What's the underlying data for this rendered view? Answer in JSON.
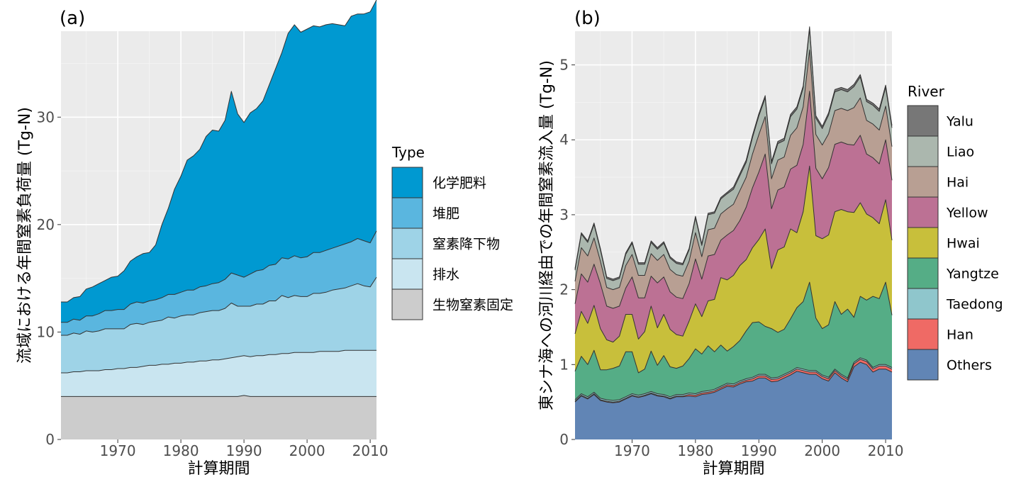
{
  "chart_data": [
    {
      "panel_label": "(a)",
      "type": "area",
      "stacked": true,
      "xlabel": "計算期間",
      "ylabel": "流域における年間窒素負荷量 (Tg-N)",
      "xlim": [
        1961,
        2011
      ],
      "ylim": [
        0,
        38
      ],
      "xticks": [
        1970,
        1980,
        1990,
        2000,
        2010
      ],
      "yticks": [
        0,
        10,
        20,
        30
      ],
      "grid": true,
      "legend": {
        "title": "Type",
        "position": "right"
      },
      "x": [
        1961,
        1962,
        1963,
        1964,
        1965,
        1966,
        1967,
        1968,
        1969,
        1970,
        1971,
        1972,
        1973,
        1974,
        1975,
        1976,
        1977,
        1978,
        1979,
        1980,
        1981,
        1982,
        1983,
        1984,
        1985,
        1986,
        1987,
        1988,
        1989,
        1990,
        1991,
        1992,
        1993,
        1994,
        1995,
        1996,
        1997,
        1998,
        1999,
        2000,
        2001,
        2002,
        2003,
        2004,
        2005,
        2006,
        2007,
        2008,
        2009,
        2010,
        2011
      ],
      "series": [
        {
          "name": "生物窒素固定",
          "color": "#cccccc",
          "values": [
            4.0,
            4.0,
            4.0,
            4.0,
            4.0,
            4.0,
            4.0,
            4.0,
            4.0,
            4.0,
            4.0,
            4.0,
            4.0,
            4.0,
            4.0,
            4.0,
            4.0,
            4.0,
            4.0,
            4.0,
            4.0,
            4.0,
            4.0,
            4.0,
            4.0,
            4.0,
            4.0,
            4.0,
            4.0,
            4.1,
            4.0,
            4.0,
            4.0,
            4.0,
            4.0,
            4.0,
            4.0,
            4.0,
            4.0,
            4.0,
            4.0,
            4.0,
            4.0,
            4.0,
            4.0,
            4.0,
            4.0,
            4.0,
            4.0,
            4.0,
            4.0
          ]
        },
        {
          "name": "排水",
          "color": "#c9e5f0",
          "values": [
            2.2,
            2.2,
            2.3,
            2.3,
            2.4,
            2.4,
            2.4,
            2.5,
            2.5,
            2.6,
            2.6,
            2.7,
            2.7,
            2.8,
            2.9,
            2.9,
            3.0,
            3.0,
            3.1,
            3.1,
            3.2,
            3.2,
            3.3,
            3.3,
            3.4,
            3.4,
            3.5,
            3.6,
            3.7,
            3.7,
            3.7,
            3.8,
            3.8,
            3.9,
            3.9,
            4.0,
            4.0,
            4.1,
            4.1,
            4.1,
            4.1,
            4.2,
            4.2,
            4.2,
            4.2,
            4.3,
            4.3,
            4.3,
            4.3,
            4.3,
            4.3
          ]
        },
        {
          "name": "窒素降下物",
          "color": "#9ed3e7",
          "values": [
            3.5,
            3.5,
            3.6,
            3.5,
            3.7,
            3.6,
            3.7,
            3.8,
            3.8,
            3.7,
            3.7,
            4.0,
            4.1,
            3.9,
            4.0,
            4.1,
            4.1,
            4.4,
            4.2,
            4.4,
            4.4,
            4.4,
            4.5,
            4.6,
            4.6,
            4.6,
            4.7,
            5.1,
            4.7,
            4.6,
            4.7,
            4.8,
            4.8,
            5.0,
            5.0,
            5.4,
            5.2,
            5.3,
            5.2,
            5.2,
            5.5,
            5.4,
            5.5,
            5.7,
            5.8,
            5.8,
            6.0,
            6.2,
            6.0,
            5.9,
            6.8
          ]
        },
        {
          "name": "堆肥",
          "color": "#5ab6df",
          "values": [
            1.2,
            1.2,
            1.3,
            1.3,
            1.4,
            1.5,
            1.6,
            1.7,
            1.7,
            1.8,
            1.8,
            1.9,
            2.0,
            2.0,
            2.0,
            2.0,
            2.1,
            2.1,
            2.2,
            2.2,
            2.3,
            2.3,
            2.4,
            2.4,
            2.5,
            2.6,
            2.7,
            2.8,
            2.9,
            2.7,
            3.0,
            3.1,
            3.2,
            3.3,
            3.4,
            3.5,
            3.6,
            3.7,
            3.6,
            3.7,
            3.8,
            3.8,
            3.9,
            3.9,
            4.0,
            4.1,
            4.1,
            4.2,
            4.2,
            4.1,
            4.3
          ]
        },
        {
          "name": "化学肥料",
          "color": "#0099d1",
          "values": [
            1.9,
            1.9,
            2.0,
            2.2,
            2.5,
            2.7,
            2.8,
            2.8,
            3.1,
            3.1,
            3.6,
            4.0,
            4.2,
            4.6,
            4.5,
            5.1,
            6.8,
            8.0,
            9.8,
            10.8,
            12.1,
            12.5,
            12.8,
            13.9,
            14.3,
            14.1,
            14.8,
            16.9,
            15.0,
            14.4,
            15.0,
            15.1,
            15.7,
            16.8,
            18.2,
            19.1,
            21.0,
            21.5,
            21.0,
            21.2,
            21.1,
            21.0,
            21.0,
            20.9,
            20.6,
            20.3,
            21.0,
            20.9,
            21.1,
            21.5,
            21.5
          ]
        }
      ]
    },
    {
      "panel_label": "(b)",
      "type": "area",
      "stacked": true,
      "xlabel": "計算期間",
      "ylabel": "東シナ海への河川経由での年間窒素流入量 (Tg-N)",
      "xlim": [
        1961,
        2011
      ],
      "ylim": [
        0,
        5.45
      ],
      "xticks": [
        1970,
        1980,
        1990,
        2000,
        2010
      ],
      "yticks": [
        0,
        1,
        2,
        3,
        4,
        5
      ],
      "grid": true,
      "legend": {
        "title": "River",
        "position": "right"
      },
      "x": [
        1961,
        1962,
        1963,
        1964,
        1965,
        1966,
        1967,
        1968,
        1969,
        1970,
        1971,
        1972,
        1973,
        1974,
        1975,
        1976,
        1977,
        1978,
        1979,
        1980,
        1981,
        1982,
        1983,
        1984,
        1985,
        1986,
        1987,
        1988,
        1989,
        1990,
        1991,
        1992,
        1993,
        1994,
        1995,
        1996,
        1997,
        1998,
        1999,
        2000,
        2001,
        2002,
        2003,
        2004,
        2005,
        2006,
        2007,
        2008,
        2009,
        2010,
        2011
      ],
      "series": [
        {
          "name": "Others",
          "color": "#6185b5",
          "values": [
            0.5,
            0.58,
            0.54,
            0.6,
            0.52,
            0.5,
            0.49,
            0.5,
            0.54,
            0.58,
            0.56,
            0.58,
            0.61,
            0.58,
            0.57,
            0.54,
            0.57,
            0.57,
            0.58,
            0.57,
            0.6,
            0.61,
            0.63,
            0.67,
            0.71,
            0.7,
            0.74,
            0.77,
            0.78,
            0.82,
            0.82,
            0.77,
            0.78,
            0.82,
            0.86,
            0.91,
            0.89,
            0.87,
            0.87,
            0.81,
            0.78,
            0.89,
            0.82,
            0.77,
            0.97,
            1.03,
            1.0,
            0.9,
            0.94,
            0.94,
            0.9
          ]
        },
        {
          "name": "Han",
          "color": "#ef6a65",
          "values": [
            0.01,
            0.01,
            0.01,
            0.01,
            0.01,
            0.01,
            0.01,
            0.01,
            0.01,
            0.01,
            0.01,
            0.01,
            0.01,
            0.01,
            0.01,
            0.01,
            0.01,
            0.01,
            0.02,
            0.02,
            0.02,
            0.02,
            0.02,
            0.02,
            0.02,
            0.02,
            0.02,
            0.02,
            0.03,
            0.03,
            0.03,
            0.03,
            0.03,
            0.03,
            0.03,
            0.03,
            0.03,
            0.03,
            0.03,
            0.03,
            0.03,
            0.03,
            0.03,
            0.03,
            0.04,
            0.04,
            0.04,
            0.04,
            0.04,
            0.04,
            0.04
          ]
        },
        {
          "name": "Taedong",
          "color": "#8fc6cc",
          "values": [
            0.02,
            0.02,
            0.02,
            0.02,
            0.02,
            0.02,
            0.02,
            0.02,
            0.02,
            0.02,
            0.02,
            0.02,
            0.02,
            0.02,
            0.02,
            0.02,
            0.02,
            0.02,
            0.02,
            0.02,
            0.02,
            0.02,
            0.02,
            0.02,
            0.02,
            0.02,
            0.02,
            0.02,
            0.02,
            0.02,
            0.02,
            0.02,
            0.02,
            0.02,
            0.02,
            0.02,
            0.02,
            0.02,
            0.02,
            0.02,
            0.02,
            0.02,
            0.02,
            0.02,
            0.02,
            0.02,
            0.02,
            0.02,
            0.02,
            0.02,
            0.02
          ]
        },
        {
          "name": "Yangtze",
          "color": "#55ad86",
          "values": [
            0.38,
            0.5,
            0.43,
            0.56,
            0.38,
            0.4,
            0.43,
            0.45,
            0.6,
            0.56,
            0.3,
            0.33,
            0.54,
            0.38,
            0.52,
            0.4,
            0.35,
            0.38,
            0.46,
            0.6,
            0.5,
            0.6,
            0.5,
            0.55,
            0.43,
            0.5,
            0.54,
            0.64,
            0.73,
            0.7,
            0.64,
            0.66,
            0.6,
            0.6,
            0.7,
            0.8,
            0.9,
            1.18,
            0.7,
            0.62,
            0.7,
            0.9,
            0.8,
            0.92,
            0.6,
            0.82,
            0.8,
            0.95,
            0.88,
            1.1,
            0.7
          ]
        },
        {
          "name": "Hwai",
          "color": "#c8bf3b",
          "values": [
            0.5,
            0.6,
            0.55,
            0.6,
            0.55,
            0.4,
            0.35,
            0.4,
            0.5,
            0.5,
            0.45,
            0.5,
            0.6,
            0.5,
            0.55,
            0.5,
            0.45,
            0.4,
            0.5,
            0.6,
            0.5,
            0.6,
            0.7,
            0.9,
            0.95,
            0.95,
            1.0,
            0.95,
            1.0,
            1.1,
            1.3,
            0.8,
            1.1,
            1.1,
            1.2,
            1.0,
            1.2,
            1.55,
            1.1,
            1.2,
            1.2,
            1.2,
            1.4,
            1.3,
            1.4,
            1.25,
            1.15,
            1.05,
            1.0,
            1.1,
            1.0
          ]
        },
        {
          "name": "Yellow",
          "color": "#bc7194",
          "values": [
            0.4,
            0.5,
            0.55,
            0.55,
            0.6,
            0.45,
            0.45,
            0.4,
            0.35,
            0.5,
            0.55,
            0.45,
            0.4,
            0.6,
            0.5,
            0.5,
            0.5,
            0.5,
            0.5,
            0.6,
            0.5,
            0.6,
            0.6,
            0.5,
            0.6,
            0.6,
            0.6,
            0.7,
            0.8,
            0.9,
            1.0,
            0.8,
            0.8,
            0.8,
            0.8,
            0.9,
            0.9,
            1.0,
            0.9,
            0.8,
            0.9,
            0.9,
            0.9,
            0.9,
            0.9,
            0.9,
            0.8,
            0.8,
            0.8,
            0.8,
            0.8
          ]
        },
        {
          "name": "Hai",
          "color": "#b89f93",
          "values": [
            0.3,
            0.35,
            0.35,
            0.35,
            0.3,
            0.25,
            0.25,
            0.25,
            0.3,
            0.3,
            0.3,
            0.3,
            0.3,
            0.3,
            0.3,
            0.3,
            0.3,
            0.3,
            0.3,
            0.35,
            0.3,
            0.35,
            0.35,
            0.35,
            0.35,
            0.35,
            0.4,
            0.4,
            0.45,
            0.5,
            0.5,
            0.4,
            0.4,
            0.4,
            0.45,
            0.5,
            0.5,
            0.55,
            0.45,
            0.45,
            0.45,
            0.45,
            0.45,
            0.45,
            0.5,
            0.5,
            0.45,
            0.45,
            0.45,
            0.45,
            0.45
          ]
        },
        {
          "name": "Liao",
          "color": "#abb7ae",
          "values": [
            0.15,
            0.18,
            0.18,
            0.18,
            0.15,
            0.12,
            0.12,
            0.12,
            0.15,
            0.15,
            0.15,
            0.15,
            0.15,
            0.15,
            0.15,
            0.15,
            0.15,
            0.15,
            0.15,
            0.2,
            0.15,
            0.2,
            0.2,
            0.2,
            0.2,
            0.2,
            0.2,
            0.2,
            0.22,
            0.25,
            0.25,
            0.2,
            0.22,
            0.22,
            0.25,
            0.25,
            0.25,
            0.28,
            0.22,
            0.22,
            0.25,
            0.25,
            0.25,
            0.25,
            0.28,
            0.28,
            0.25,
            0.25,
            0.25,
            0.25,
            0.25
          ]
        },
        {
          "name": "Yalu",
          "color": "#777777",
          "values": [
            0.02,
            0.02,
            0.02,
            0.02,
            0.02,
            0.02,
            0.02,
            0.02,
            0.02,
            0.02,
            0.02,
            0.02,
            0.02,
            0.02,
            0.02,
            0.02,
            0.02,
            0.02,
            0.02,
            0.02,
            0.02,
            0.02,
            0.02,
            0.02,
            0.02,
            0.03,
            0.03,
            0.03,
            0.03,
            0.03,
            0.03,
            0.03,
            0.03,
            0.03,
            0.03,
            0.03,
            0.03,
            0.03,
            0.03,
            0.03,
            0.03,
            0.03,
            0.03,
            0.03,
            0.03,
            0.03,
            0.03,
            0.03,
            0.03,
            0.03,
            0.03
          ]
        }
      ]
    }
  ]
}
